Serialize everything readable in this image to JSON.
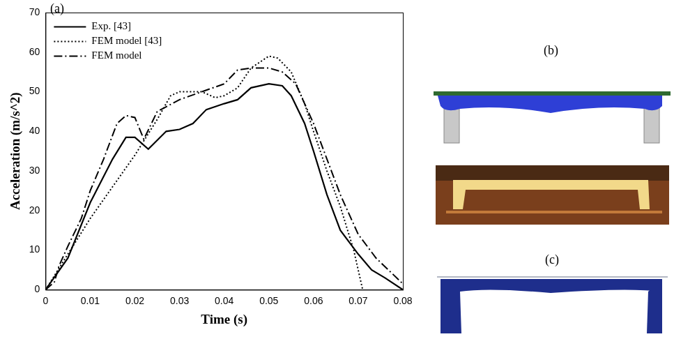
{
  "figure": {
    "panels": [
      {
        "label": "(a)"
      },
      {
        "label": "(b)"
      },
      {
        "label": "(c)"
      }
    ]
  },
  "chart_data": {
    "type": "line",
    "x_label": "Time (s)",
    "y_label": "Acceleration (m/s^2)",
    "xlim": [
      0,
      0.08
    ],
    "xticks": [
      0,
      0.01,
      0.02,
      0.03,
      0.04,
      0.05,
      0.06,
      0.07,
      0.08
    ],
    "ylim": [
      0,
      70
    ],
    "yticks": [
      0,
      10,
      20,
      30,
      40,
      50,
      60,
      70
    ],
    "grid": false,
    "legend": "top-left",
    "series": [
      {
        "name": "Exp. [43]",
        "color": "#000000",
        "line_style": "solid",
        "x": [
          0,
          0.005,
          0.01,
          0.015,
          0.018,
          0.02,
          0.023,
          0.027,
          0.03,
          0.033,
          0.036,
          0.04,
          0.043,
          0.046,
          0.05,
          0.053,
          0.055,
          0.058,
          0.06,
          0.063,
          0.066,
          0.07,
          0.073,
          0.076,
          0.08
        ],
        "values": [
          0,
          8,
          22,
          33,
          38.5,
          38.5,
          35.5,
          40,
          40.5,
          42,
          45.5,
          47,
          48,
          51,
          52,
          51.5,
          49,
          42,
          35,
          24,
          15,
          9,
          5,
          3,
          0
        ]
      },
      {
        "name": "FEM model [43]",
        "color": "#000000",
        "line_style": "dotted",
        "x": [
          0,
          0.005,
          0.01,
          0.015,
          0.02,
          0.025,
          0.028,
          0.03,
          0.035,
          0.038,
          0.04,
          0.043,
          0.046,
          0.05,
          0.052,
          0.055,
          0.058,
          0.06,
          0.063,
          0.066,
          0.069,
          0.071
        ],
        "values": [
          0,
          9,
          18,
          26,
          34,
          43,
          49,
          50,
          50,
          48.5,
          49,
          51,
          56,
          59,
          58.5,
          55,
          47,
          40,
          30,
          21,
          10,
          0
        ]
      },
      {
        "name": "FEM model",
        "color": "#000000",
        "line_style": "dashdot",
        "x": [
          0,
          0.002,
          0.003,
          0.005,
          0.008,
          0.01,
          0.013,
          0.016,
          0.018,
          0.02,
          0.022,
          0.025,
          0.03,
          0.035,
          0.04,
          0.043,
          0.046,
          0.05,
          0.053,
          0.056,
          0.058,
          0.06,
          0.063,
          0.066,
          0.07,
          0.074,
          0.08
        ],
        "values": [
          0,
          2,
          6,
          11,
          18,
          25,
          33,
          42,
          44,
          43.5,
          38,
          45,
          48,
          50,
          52,
          55.5,
          56,
          56,
          55,
          52,
          47,
          42,
          33,
          24,
          14,
          8,
          1.5
        ]
      }
    ]
  }
}
